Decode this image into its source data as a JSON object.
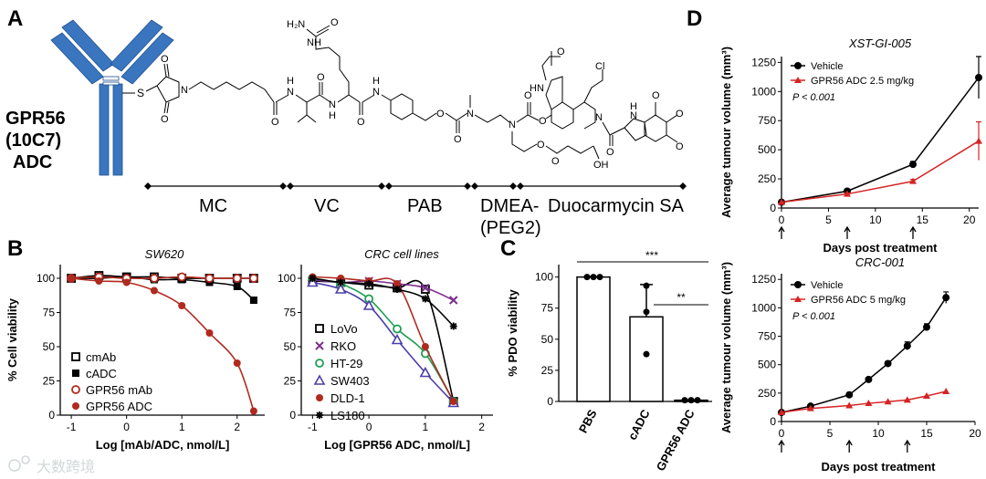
{
  "panel_labels": {
    "a": "A",
    "b": "B",
    "c": "C",
    "d": "D"
  },
  "panel_a": {
    "antibody_label": [
      "GPR56",
      "(10C7)",
      "ADC"
    ],
    "sulfur": "S",
    "atoms": {
      "urea_nh2": "H₂N",
      "urea_o": "O",
      "urea_nh": "NH",
      "n_mal": "N",
      "o_mal_top": "O",
      "o_mal_bot": "O",
      "o_hex": "O",
      "nh_val": "N",
      "h_val": "H",
      "o_val": "O",
      "nh_cit": "N",
      "h_cit": "H",
      "o_cit": "O",
      "nh_pab": "N",
      "h_pab": "H",
      "o_pab": "O",
      "o_carb": "O",
      "n_me": "N",
      "n_dmea": "N",
      "o_dmea": "O",
      "o_peg": "O",
      "oh": "OH",
      "o_ester": "O",
      "o_me": "O",
      "hn_ind": "HN",
      "cl": "Cl",
      "n_duo": "N",
      "o_duo": "O",
      "o_link": "O",
      "n_tmi": "N",
      "h_tmi": "H",
      "ome1": "O",
      "ome2": "O",
      "ome3": "O"
    },
    "segments": [
      "MC",
      "VC",
      "PAB",
      "DMEA-",
      "(PEG2)",
      "Duocarmycin SA"
    ]
  },
  "panel_b": {
    "left_title": "SW620",
    "right_title": "CRC cell lines"
  },
  "chart_data": [
    {
      "type": "line",
      "id": "B-left",
      "title": "SW620",
      "xlabel": "Log [mAb/ADC, nmol/L]",
      "ylabel": "% Cell viability",
      "xlim": [
        -1.2,
        2.5
      ],
      "ylim": [
        0,
        110
      ],
      "xticks": [
        "-1",
        "0",
        "1",
        "2"
      ],
      "yticks": [
        "0",
        "25",
        "50",
        "75",
        "100"
      ],
      "legend": [
        "cmAb",
        "cADC",
        "GPR56 mAb",
        "GPR56 ADC"
      ],
      "x": [
        -1,
        -0.5,
        0,
        0.5,
        1,
        1.5,
        2,
        2.3
      ],
      "series": [
        {
          "name": "cmAb",
          "values": [
            100,
            102,
            101,
            101,
            100,
            100,
            100,
            100
          ]
        },
        {
          "name": "cADC",
          "values": [
            100,
            100,
            101,
            99,
            99,
            97,
            94,
            84
          ]
        },
        {
          "name": "GPR56 mAb",
          "values": [
            100,
            101,
            100,
            100,
            101,
            100,
            100,
            100
          ]
        },
        {
          "name": "GPR56 ADC",
          "values": [
            100,
            98,
            97,
            91,
            80,
            60,
            38,
            3
          ]
        }
      ]
    },
    {
      "type": "line",
      "id": "B-right",
      "title": "CRC cell lines",
      "xlabel": "Log [GPR56 ADC, nmol/L]",
      "ylabel": "",
      "xlim": [
        -1.2,
        2.2
      ],
      "ylim": [
        0,
        110
      ],
      "xticks": [
        "-1",
        "0",
        "1",
        "2"
      ],
      "yticks": [
        "0",
        "25",
        "50",
        "75",
        "100"
      ],
      "legend": [
        "LoVo",
        "RKO",
        "HT-29",
        "SW403",
        "DLD-1",
        "LS180"
      ],
      "x": [
        -1,
        -0.5,
        0,
        0.5,
        1,
        1.5
      ],
      "series": [
        {
          "name": "LoVo",
          "values": [
            98,
            97,
            95,
            93,
            92,
            10
          ]
        },
        {
          "name": "RKO",
          "values": [
            99,
            97,
            98,
            96,
            93,
            84
          ]
        },
        {
          "name": "HT-29",
          "values": [
            100,
            96,
            85,
            63,
            45,
            10
          ]
        },
        {
          "name": "SW403",
          "values": [
            97,
            92,
            80,
            55,
            31,
            9
          ]
        },
        {
          "name": "DLD-1",
          "values": [
            101,
            100,
            98,
            96,
            50,
            10
          ]
        },
        {
          "name": "LS180",
          "values": [
            100,
            97,
            96,
            92,
            85,
            65
          ]
        }
      ]
    },
    {
      "type": "bar",
      "id": "C",
      "ylabel": "% PDO viability",
      "categories": [
        "PBS",
        "cADC",
        "GPR56 ADC"
      ],
      "values": [
        100,
        68,
        1
      ],
      "points": [
        [
          100,
          100,
          100
        ],
        [
          93,
          72,
          38
        ],
        [
          1,
          1,
          1
        ]
      ],
      "errors": [
        0,
        26,
        0
      ],
      "ylim": [
        0,
        110
      ],
      "yticks": [
        "0",
        "25",
        "50",
        "75",
        "100"
      ],
      "significance": [
        "***",
        "**"
      ]
    },
    {
      "type": "line",
      "id": "D-top",
      "title": "XST-GI-005",
      "xlabel": "Days post treatment",
      "ylabel": "Average tumour volume (mm³)",
      "xlim": [
        0,
        21
      ],
      "ylim": [
        0,
        1300
      ],
      "xticks": [
        "0",
        "5",
        "10",
        "15",
        "20"
      ],
      "yticks": [
        "0",
        "250",
        "500",
        "750",
        "1000",
        "1250"
      ],
      "dosing_days": [
        0,
        7,
        14
      ],
      "legend": [
        "Vehicle",
        "GPR56 ADC 2.5 mg/kg"
      ],
      "pvalue": "P < 0.001",
      "x": [
        0,
        7,
        14,
        21
      ],
      "series": [
        {
          "name": "Vehicle",
          "values": [
            50,
            145,
            375,
            1120
          ],
          "errors": [
            0,
            10,
            25,
            180
          ]
        },
        {
          "name": "GPR56 ADC 2.5 mg/kg",
          "values": [
            50,
            120,
            230,
            575
          ],
          "errors": [
            0,
            8,
            15,
            165
          ]
        }
      ]
    },
    {
      "type": "line",
      "id": "D-bottom",
      "title": "CRC-001",
      "xlabel": "Days post treatment",
      "ylabel": "Average tumour volume (mm³)",
      "xlim": [
        0,
        20
      ],
      "ylim": [
        0,
        1300
      ],
      "xticks": [
        "0",
        "5",
        "10",
        "15",
        "20"
      ],
      "yticks": [
        "0",
        "250",
        "500",
        "750",
        "1000",
        "1250"
      ],
      "dosing_days": [
        0,
        7,
        13
      ],
      "legend": [
        "Vehicle",
        "GPR56 ADC 5 mg/kg"
      ],
      "pvalue": "P < 0.001",
      "x": [
        0,
        3,
        7,
        9,
        11,
        13,
        15,
        17
      ],
      "series": [
        {
          "name": "Vehicle",
          "values": [
            80,
            135,
            235,
            370,
            510,
            665,
            830,
            1090
          ],
          "errors": [
            0,
            8,
            10,
            15,
            20,
            35,
            30,
            50
          ]
        },
        {
          "name": "GPR56 ADC 5 mg/kg",
          "values": [
            80,
            115,
            140,
            160,
            175,
            190,
            225,
            265
          ],
          "errors": [
            0,
            0,
            0,
            0,
            0,
            0,
            0,
            0
          ]
        }
      ]
    }
  ]
}
